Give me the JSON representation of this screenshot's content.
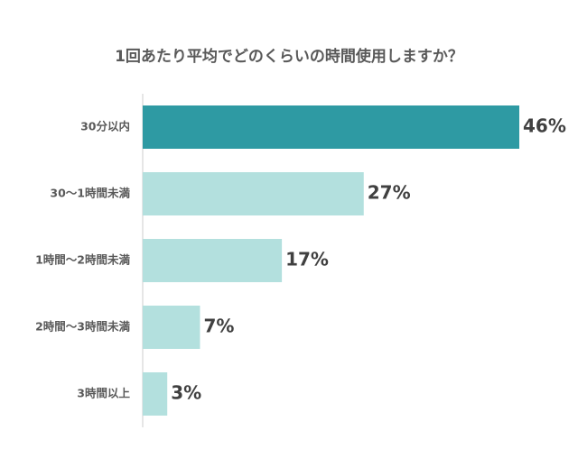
{
  "chart_data": {
    "type": "bar",
    "orientation": "horizontal",
    "title": "1回あたり平均でどのくらいの時間使用しますか？",
    "categories": [
      "30分以内",
      "30～1時間未満",
      "1時間～2時間未満",
      "2時間～3時間未満",
      "3時間以上"
    ],
    "values": [
      46,
      27,
      17,
      7,
      3
    ],
    "value_labels": [
      "46%",
      "27%",
      "17%",
      "7%",
      "3%"
    ],
    "unit": "%",
    "xlim": [
      0,
      50
    ],
    "grid": false,
    "legend": "none",
    "colors": {
      "highlight": "#2e9aa3",
      "bar": "#b3e0de",
      "axis": "#cccccc",
      "label_text": "#595959",
      "value_text": "#404040"
    }
  }
}
